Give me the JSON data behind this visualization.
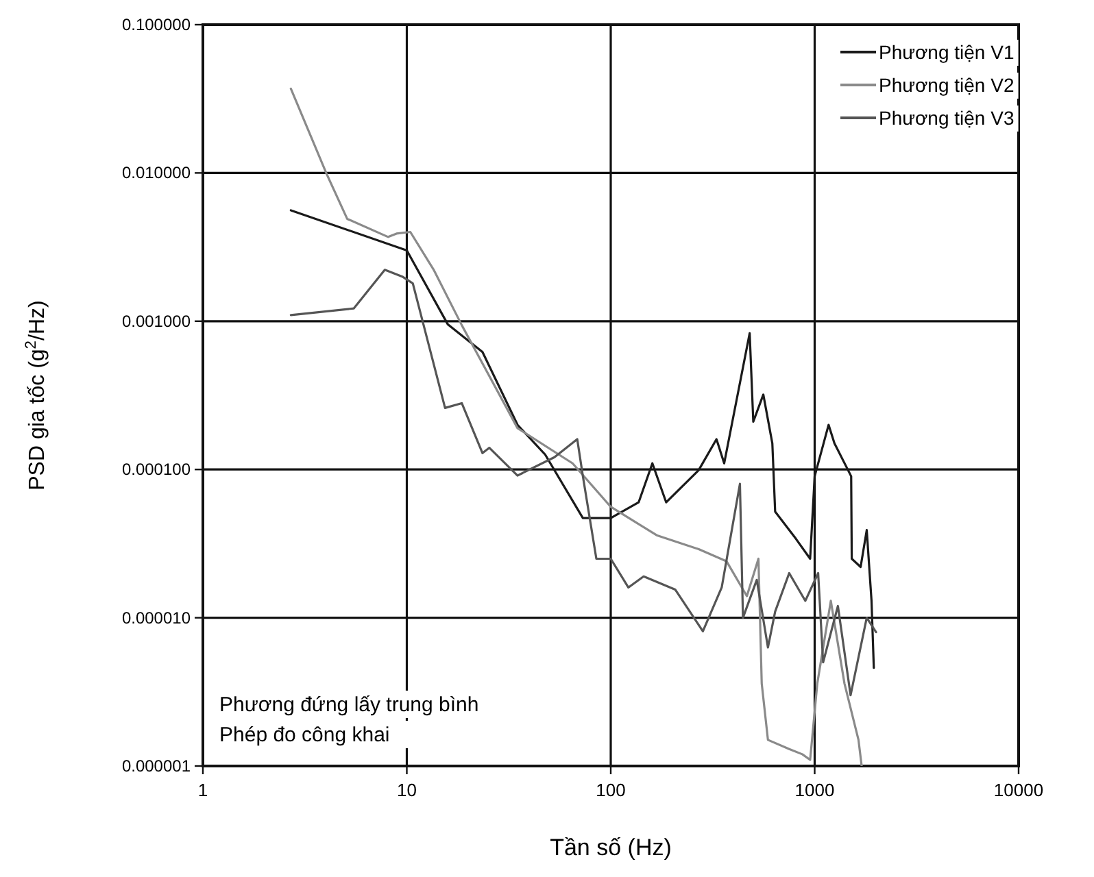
{
  "chart_data": {
    "type": "line",
    "xlabel": "Tần số (Hz)",
    "ylabel": "PSD gia tốc (g$^{2}$/Hz)",
    "log": "xy",
    "grid": true,
    "legend": "top right",
    "marker": "none",
    "line_style": "solid",
    "xlim": [
      1,
      10000
    ],
    "xticks": [
      1,
      10,
      100,
      1000,
      10000
    ],
    "ylim": [
      1e-06,
      0.1
    ],
    "yticks": [
      {
        "value": 0.1,
        "label": "0.100000"
      },
      {
        "value": 0.01,
        "label": "0.010000"
      },
      {
        "value": 0.001,
        "label": "0.001000"
      },
      {
        "value": 0.0001,
        "label": "0.000100"
      },
      {
        "value": 1e-05,
        "label": "0.000010"
      },
      {
        "value": 1e-06,
        "label": "0.000001"
      }
    ],
    "annotations": [
      "Phương đứng lấy trung bình",
      "Phép đo công khai"
    ],
    "series": [
      {
        "name": "Phương tiện V1",
        "color": "#1a1a1a",
        "x": [
          2.7,
          10,
          15.9,
          23.5,
          34.9,
          47.7,
          73,
          100,
          137,
          160,
          187,
          270,
          330,
          360,
          480,
          500,
          560,
          620,
          640,
          810,
          950,
          1000,
          1170,
          1250,
          1510,
          1520,
          1680,
          1800,
          1900,
          1950
        ],
        "values": [
          0.0056,
          0.003,
          0.00095,
          0.00062,
          0.0002,
          0.000126,
          4.7e-05,
          4.7e-05,
          6e-05,
          0.00011,
          6e-05,
          9.9e-05,
          0.00016,
          0.00011,
          0.00083,
          0.00021,
          0.00032,
          0.00015,
          5.2e-05,
          3.4e-05,
          2.5e-05,
          9e-05,
          0.0002,
          0.00015,
          9e-05,
          2.5e-05,
          2.2e-05,
          3.9e-05,
          1.3e-05,
          4.6e-06
        ]
      },
      {
        "name": "Phương tiện V2",
        "color": "#8a8a8a",
        "x": [
          2.7,
          4.05,
          5.1,
          8.1,
          8.9,
          10.4,
          13.6,
          18.6,
          34.9,
          65,
          100,
          168,
          270,
          370,
          465,
          530,
          550,
          590,
          750,
          870,
          950,
          1030,
          1200,
          1400,
          1640,
          1700
        ],
        "values": [
          0.037,
          0.0098,
          0.0049,
          0.0037,
          0.0039,
          0.004,
          0.0022,
          0.00094,
          0.00019,
          0.00011,
          5.6e-05,
          3.6e-05,
          2.9e-05,
          2.4e-05,
          1.4e-05,
          2.5e-05,
          3.6e-06,
          1.5e-06,
          1.3e-06,
          1.2e-06,
          1.1e-06,
          3.6e-06,
          1.3e-05,
          3.6e-06,
          1.5e-06,
          1e-06
        ]
      },
      {
        "name": "Phương tiện V3",
        "color": "#555555",
        "x": [
          2.7,
          5.5,
          7.8,
          9.5,
          10.7,
          15.4,
          18.6,
          23.5,
          25.4,
          34.9,
          53,
          68.5,
          73,
          85,
          100,
          122,
          145,
          207,
          283,
          350,
          430,
          445,
          520,
          590,
          640,
          750,
          900,
          1040,
          1100,
          1300,
          1500,
          1800,
          2000
        ],
        "values": [
          0.0011,
          0.00122,
          0.00222,
          0.002,
          0.0018,
          0.00026,
          0.00028,
          0.000129,
          0.00014,
          9.1e-05,
          0.000121,
          0.00016,
          9e-05,
          2.5e-05,
          2.5e-05,
          1.6e-05,
          1.9e-05,
          1.55e-05,
          8.1e-06,
          1.6e-05,
          8e-05,
          1e-05,
          1.8e-05,
          6.3e-06,
          1.1e-05,
          2e-05,
          1.3e-05,
          2e-05,
          5e-06,
          1.2e-05,
          3e-06,
          1e-05,
          8e-06
        ]
      }
    ]
  }
}
